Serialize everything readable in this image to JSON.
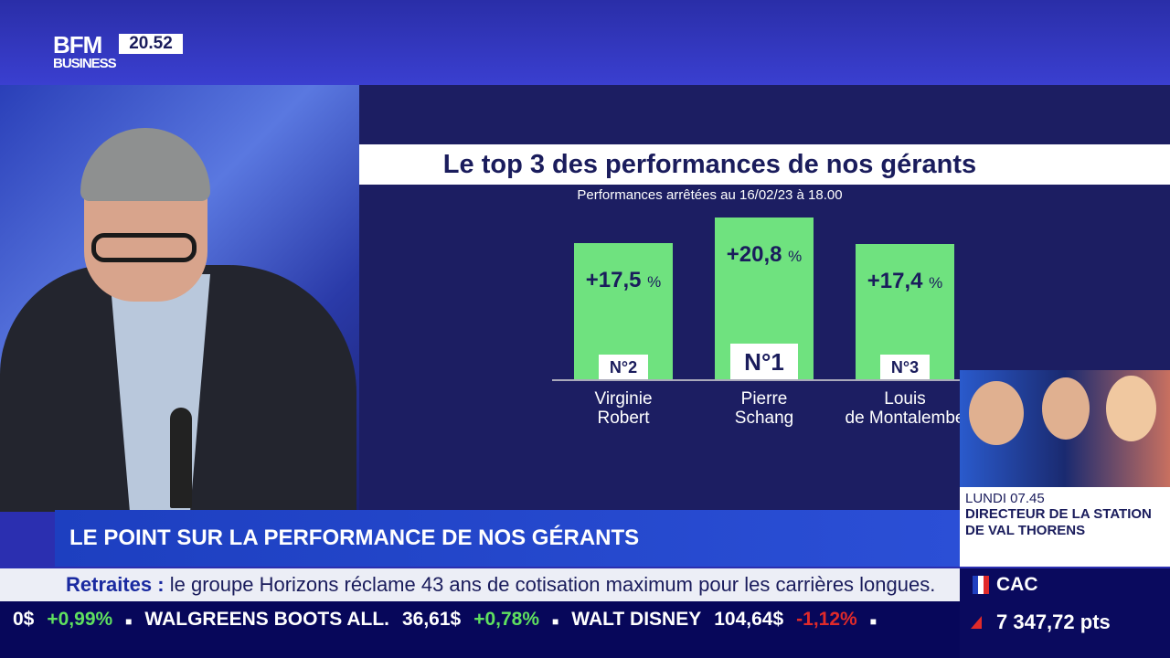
{
  "channel": {
    "logo_line1": "BFM",
    "logo_line2": "BUSINESS",
    "clock": "20.52"
  },
  "graphic": {
    "title": "Le top 3 des performances de nos gérants",
    "subtitle": "Performances arrêtées au 16/02/23 à 18.00",
    "bars": [
      {
        "name_line1": "Virginie",
        "name_line2": "Robert",
        "value": "+17,5",
        "unit": "%",
        "rank": "N°2",
        "pct": 17.5
      },
      {
        "name_line1": "Pierre",
        "name_line2": "Schang",
        "value": "+20,8",
        "unit": "%",
        "rank": "N°1",
        "pct": 20.8
      },
      {
        "name_line1": "Louis",
        "name_line2": "de Montalembe",
        "value": "+17,4",
        "unit": "%",
        "rank": "N°3",
        "pct": 17.4
      }
    ]
  },
  "promo": {
    "day": "LUNDI 07.45",
    "text": "DIRECTEUR DE LA STATION DE VAL THORENS"
  },
  "banner": "LE POINT SUR LA PERFORMANCE DE NOS GÉRANTS",
  "headline": {
    "label": "Retraites :",
    "text": "le groupe Horizons réclame 43 ans de cotisation maximum pour les carrières longues."
  },
  "ticker": [
    {
      "name": "",
      "price": "0$",
      "change": "+0,99%",
      "dir": "up"
    },
    {
      "name": "WALGREENS BOOTS ALL.",
      "price": "36,61$",
      "change": "+0,78%",
      "dir": "up"
    },
    {
      "name": "WALT DISNEY",
      "price": "104,64$",
      "change": "-1,12%",
      "dir": "down"
    }
  ],
  "index": {
    "name": "CAC",
    "value": "7 347,72 pts",
    "dir": "up"
  }
}
